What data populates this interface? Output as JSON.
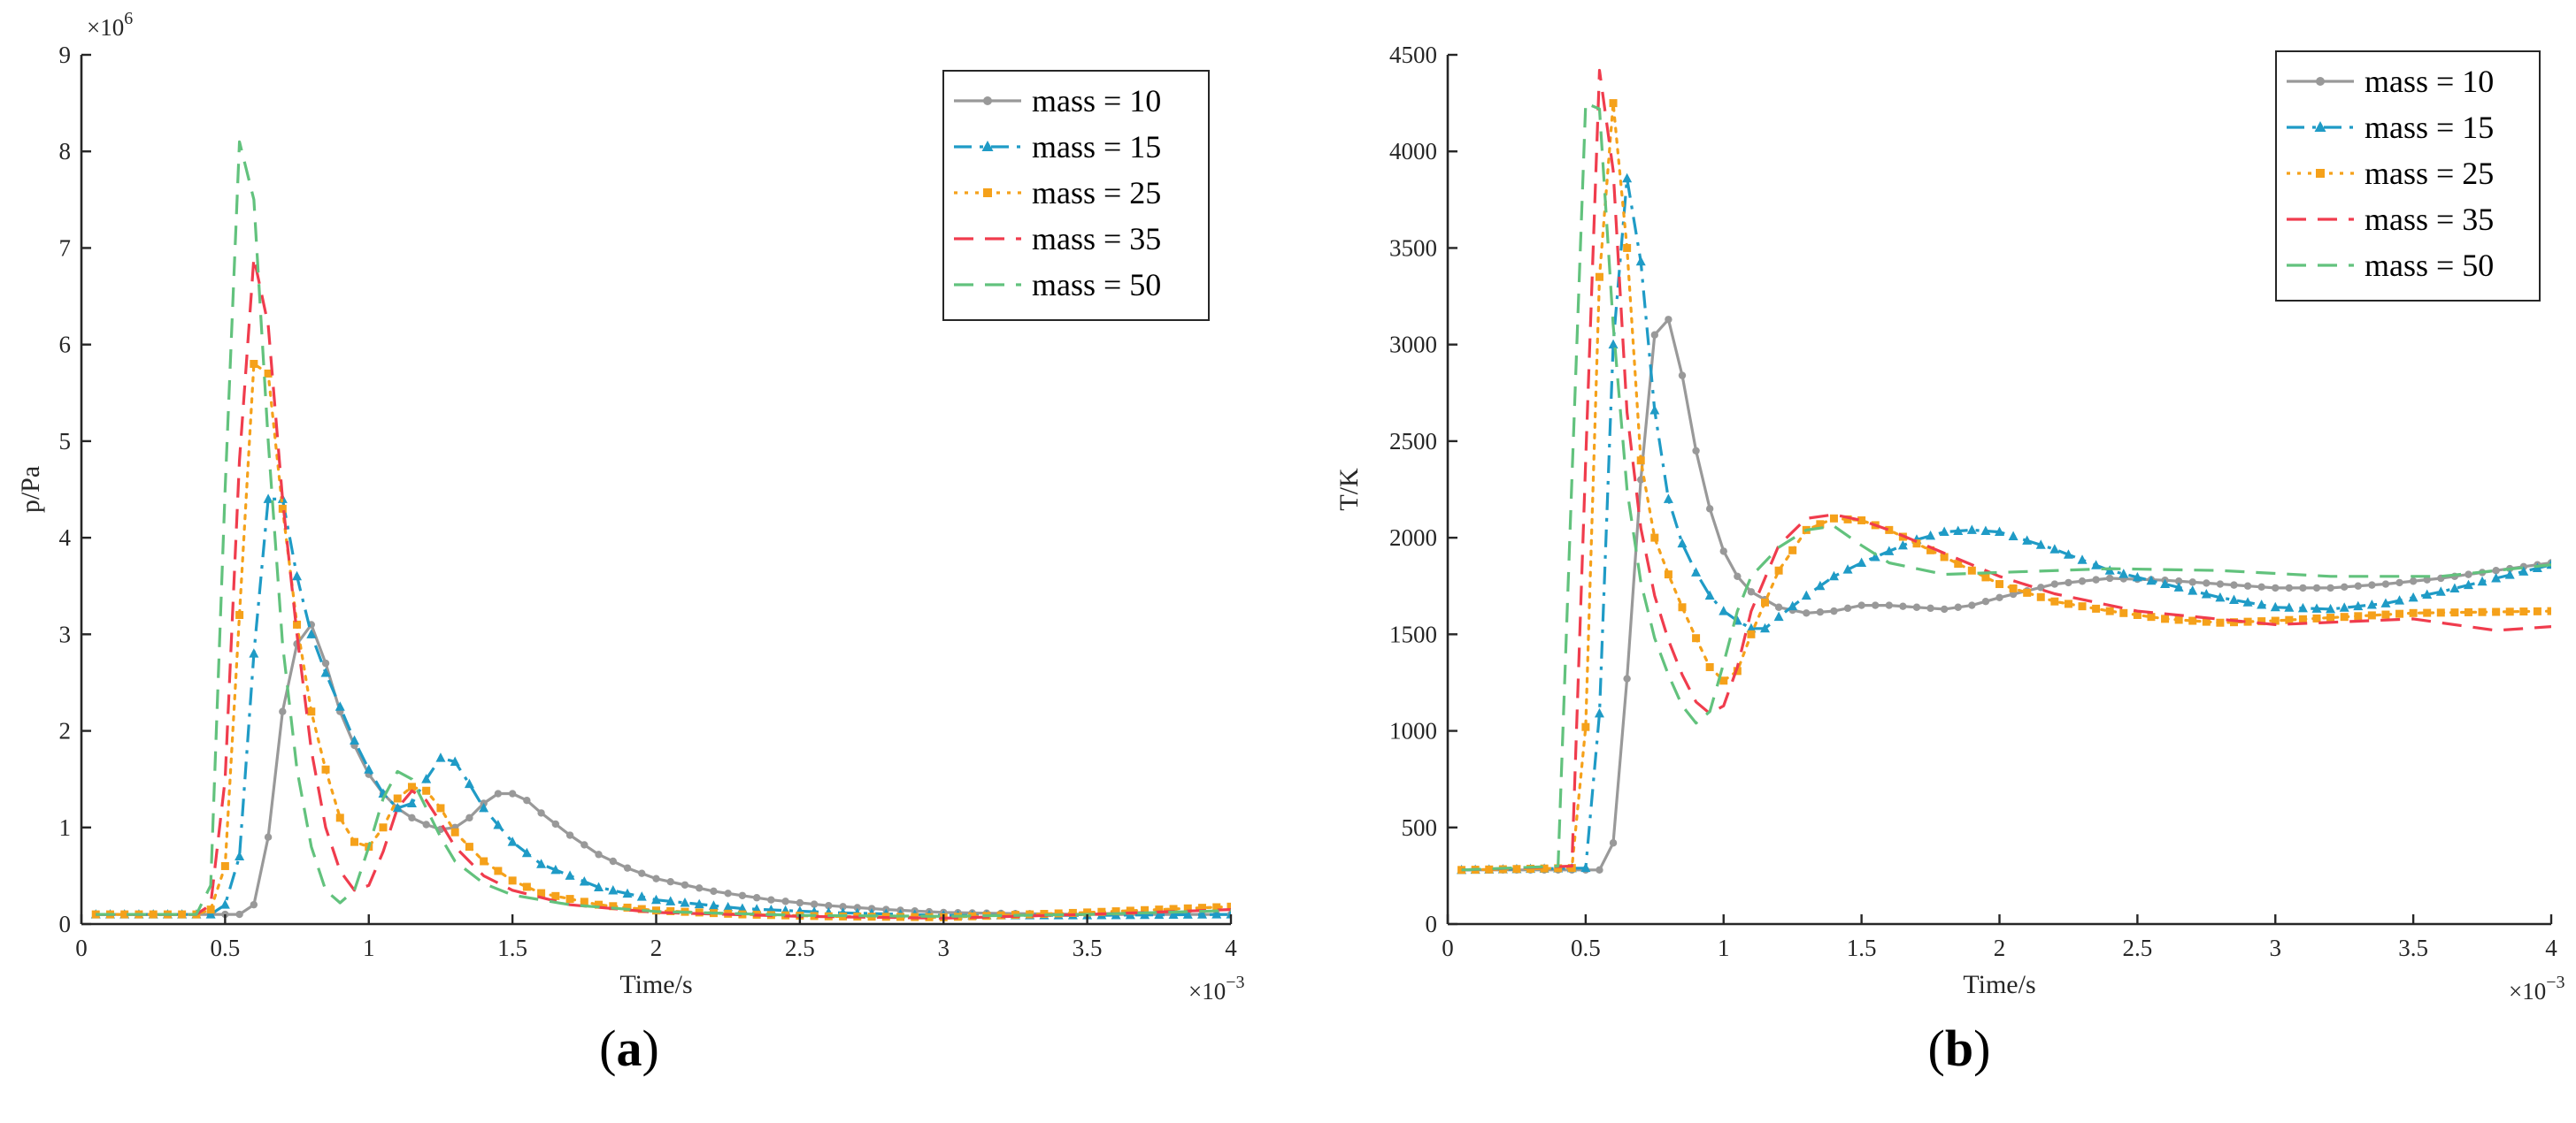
{
  "chart_data": [
    {
      "type": "line",
      "caption_open": "(",
      "caption_letter": "a",
      "caption_close": ")",
      "xlabel": "Time/s",
      "ylabel": "p/Pa",
      "xlim": [
        0,
        4
      ],
      "ylim": [
        0,
        9
      ],
      "x_ticks": [
        "0",
        "0.5",
        "1",
        "1.5",
        "2",
        "2.5",
        "3",
        "3.5",
        "4"
      ],
      "y_ticks": [
        "0",
        "1",
        "2",
        "3",
        "4",
        "5",
        "6",
        "7",
        "8",
        "9"
      ],
      "x_exponent": "×10",
      "x_exponent_power": "−3",
      "y_exponent": "×10",
      "y_exponent_power": "6",
      "legend_position": "top-right",
      "series": [
        {
          "name": "mass = 10",
          "color": "#999999",
          "style": "solid",
          "marker": "dot",
          "x": [
            0.05,
            0.5,
            0.55,
            0.6,
            0.65,
            0.7,
            0.75,
            0.8,
            0.85,
            0.9,
            0.95,
            1.0,
            1.05,
            1.1,
            1.15,
            1.2,
            1.25,
            1.3,
            1.35,
            1.4,
            1.45,
            1.5,
            1.55,
            1.6,
            1.7,
            1.8,
            1.9,
            2.0,
            2.2,
            2.4,
            2.6,
            2.8,
            3.0,
            3.2,
            3.5,
            4.0
          ],
          "y": [
            0.1,
            0.1,
            0.1,
            0.2,
            0.9,
            2.2,
            2.9,
            3.1,
            2.7,
            2.2,
            1.85,
            1.55,
            1.35,
            1.2,
            1.1,
            1.03,
            0.98,
            1.0,
            1.1,
            1.25,
            1.35,
            1.35,
            1.28,
            1.15,
            0.92,
            0.72,
            0.58,
            0.47,
            0.34,
            0.25,
            0.19,
            0.15,
            0.12,
            0.11,
            0.1,
            0.1
          ]
        },
        {
          "name": "mass = 15",
          "color": "#1f9bc6",
          "style": "dashdot",
          "marker": "triangle",
          "x": [
            0.05,
            0.45,
            0.5,
            0.55,
            0.6,
            0.65,
            0.7,
            0.75,
            0.8,
            0.85,
            0.9,
            0.95,
            1.0,
            1.05,
            1.1,
            1.15,
            1.2,
            1.25,
            1.3,
            1.35,
            1.4,
            1.5,
            1.6,
            1.8,
            2.0,
            2.3,
            2.6,
            3.0,
            3.5,
            4.0
          ],
          "y": [
            0.1,
            0.1,
            0.2,
            0.7,
            2.8,
            4.4,
            4.4,
            3.6,
            3.0,
            2.6,
            2.25,
            1.9,
            1.6,
            1.35,
            1.2,
            1.25,
            1.5,
            1.72,
            1.68,
            1.45,
            1.2,
            0.85,
            0.62,
            0.38,
            0.25,
            0.16,
            0.12,
            0.09,
            0.09,
            0.1
          ]
        },
        {
          "name": "mass = 25",
          "color": "#f5a11a",
          "style": "dotted",
          "marker": "square",
          "x": [
            0.05,
            0.4,
            0.45,
            0.5,
            0.55,
            0.6,
            0.65,
            0.7,
            0.75,
            0.8,
            0.85,
            0.9,
            0.95,
            1.0,
            1.05,
            1.1,
            1.15,
            1.2,
            1.25,
            1.3,
            1.4,
            1.5,
            1.6,
            1.8,
            2.0,
            2.3,
            2.6,
            3.0,
            3.5,
            4.0
          ],
          "y": [
            0.1,
            0.1,
            0.15,
            0.6,
            3.2,
            5.8,
            5.7,
            4.3,
            3.1,
            2.2,
            1.6,
            1.1,
            0.85,
            0.8,
            1.0,
            1.3,
            1.42,
            1.38,
            1.2,
            0.95,
            0.65,
            0.45,
            0.32,
            0.2,
            0.14,
            0.1,
            0.08,
            0.07,
            0.12,
            0.18
          ]
        },
        {
          "name": "mass = 35",
          "color": "#f03c4d",
          "style": "dashed",
          "marker": "none",
          "x": [
            0.05,
            0.4,
            0.45,
            0.5,
            0.55,
            0.6,
            0.65,
            0.7,
            0.75,
            0.8,
            0.85,
            0.9,
            0.95,
            1.0,
            1.05,
            1.1,
            1.15,
            1.2,
            1.25,
            1.3,
            1.4,
            1.5,
            1.7,
            2.0,
            2.5,
            3.0,
            3.5,
            4.0
          ],
          "y": [
            0.1,
            0.1,
            0.2,
            1.5,
            4.8,
            6.9,
            6.2,
            4.4,
            3.0,
            1.8,
            1.0,
            0.55,
            0.35,
            0.4,
            0.75,
            1.2,
            1.38,
            1.28,
            1.05,
            0.8,
            0.5,
            0.35,
            0.2,
            0.12,
            0.08,
            0.06,
            0.1,
            0.15
          ]
        },
        {
          "name": "mass = 50",
          "color": "#62c27d",
          "style": "dashed",
          "marker": "none",
          "x": [
            0.05,
            0.4,
            0.45,
            0.5,
            0.55,
            0.6,
            0.65,
            0.7,
            0.75,
            0.8,
            0.85,
            0.9,
            0.95,
            1.0,
            1.05,
            1.1,
            1.15,
            1.2,
            1.25,
            1.3,
            1.4,
            1.5,
            1.7,
            2.0,
            2.5,
            3.0,
            3.5,
            4.0
          ],
          "y": [
            0.1,
            0.1,
            0.4,
            4.5,
            8.1,
            7.5,
            5.0,
            2.9,
            1.6,
            0.8,
            0.35,
            0.22,
            0.35,
            0.8,
            1.3,
            1.58,
            1.5,
            1.2,
            0.9,
            0.65,
            0.42,
            0.3,
            0.2,
            0.13,
            0.09,
            0.08,
            0.1,
            0.14
          ]
        }
      ]
    },
    {
      "type": "line",
      "caption_open": "(",
      "caption_letter": "b",
      "caption_close": ")",
      "xlabel": "Time/s",
      "ylabel": "T/K",
      "xlim": [
        0,
        4
      ],
      "ylim": [
        0,
        4500
      ],
      "x_ticks": [
        "0",
        "0.5",
        "1",
        "1.5",
        "2",
        "2.5",
        "3",
        "3.5",
        "4"
      ],
      "y_ticks": [
        "0",
        "500",
        "1000",
        "1500",
        "2000",
        "2500",
        "3000",
        "3500",
        "4000",
        "4500"
      ],
      "x_exponent": "×10",
      "x_exponent_power": "−3",
      "legend_position": "top-right",
      "series": [
        {
          "name": "mass = 10",
          "color": "#999999",
          "style": "solid",
          "marker": "dot",
          "x": [
            0.05,
            0.55,
            0.6,
            0.65,
            0.7,
            0.75,
            0.8,
            0.85,
            0.9,
            0.95,
            1.0,
            1.05,
            1.1,
            1.2,
            1.3,
            1.4,
            1.5,
            1.6,
            1.7,
            1.8,
            1.9,
            2.0,
            2.2,
            2.4,
            2.6,
            2.8,
            3.0,
            3.2,
            3.4,
            3.6,
            3.8,
            4.0
          ],
          "y": [
            280,
            280,
            420,
            1270,
            2300,
            3050,
            3130,
            2840,
            2450,
            2150,
            1930,
            1800,
            1720,
            1640,
            1610,
            1620,
            1650,
            1650,
            1640,
            1630,
            1650,
            1690,
            1760,
            1790,
            1780,
            1760,
            1740,
            1740,
            1760,
            1790,
            1830,
            1870
          ]
        },
        {
          "name": "mass = 15",
          "color": "#1f9bc6",
          "style": "dashdot",
          "marker": "triangle",
          "x": [
            0.05,
            0.5,
            0.55,
            0.6,
            0.65,
            0.7,
            0.75,
            0.8,
            0.85,
            0.9,
            0.95,
            1.0,
            1.05,
            1.1,
            1.15,
            1.2,
            1.3,
            1.4,
            1.5,
            1.6,
            1.7,
            1.8,
            1.9,
            2.0,
            2.2,
            2.4,
            2.6,
            2.8,
            3.0,
            3.2,
            3.4,
            3.6,
            3.8,
            4.0
          ],
          "y": [
            280,
            290,
            1090,
            3000,
            3860,
            3430,
            2660,
            2200,
            1970,
            1820,
            1700,
            1620,
            1570,
            1530,
            1530,
            1590,
            1700,
            1800,
            1870,
            1930,
            1990,
            2030,
            2040,
            2030,
            1940,
            1830,
            1760,
            1690,
            1640,
            1630,
            1660,
            1720,
            1790,
            1860
          ]
        },
        {
          "name": "mass = 25",
          "color": "#f5a11a",
          "style": "dotted",
          "marker": "square",
          "x": [
            0.05,
            0.45,
            0.5,
            0.55,
            0.6,
            0.65,
            0.7,
            0.75,
            0.8,
            0.85,
            0.9,
            0.95,
            1.0,
            1.05,
            1.1,
            1.2,
            1.3,
            1.4,
            1.5,
            1.6,
            1.8,
            2.0,
            2.2,
            2.4,
            2.6,
            2.8,
            3.0,
            3.5,
            4.0
          ],
          "y": [
            280,
            290,
            1020,
            3350,
            4250,
            3500,
            2400,
            2000,
            1810,
            1640,
            1480,
            1330,
            1260,
            1310,
            1500,
            1830,
            2040,
            2100,
            2090,
            2040,
            1900,
            1760,
            1670,
            1620,
            1580,
            1560,
            1570,
            1610,
            1620
          ]
        },
        {
          "name": "mass = 35",
          "color": "#f03c4d",
          "style": "dashed",
          "marker": "none",
          "x": [
            0.05,
            0.45,
            0.5,
            0.55,
            0.6,
            0.65,
            0.7,
            0.75,
            0.8,
            0.85,
            0.9,
            0.95,
            1.0,
            1.05,
            1.1,
            1.2,
            1.3,
            1.4,
            1.5,
            1.6,
            1.8,
            2.0,
            2.2,
            2.5,
            3.0,
            3.5,
            3.8,
            4.0
          ],
          "y": [
            280,
            300,
            2400,
            4420,
            3900,
            2650,
            2050,
            1700,
            1470,
            1290,
            1150,
            1090,
            1130,
            1330,
            1620,
            1960,
            2100,
            2120,
            2090,
            2040,
            1920,
            1800,
            1710,
            1620,
            1550,
            1580,
            1520,
            1540
          ]
        },
        {
          "name": "mass = 50",
          "color": "#62c27d",
          "style": "dashed",
          "marker": "none",
          "x": [
            0.05,
            0.4,
            0.45,
            0.5,
            0.55,
            0.6,
            0.65,
            0.7,
            0.75,
            0.8,
            0.85,
            0.9,
            0.95,
            1.0,
            1.05,
            1.1,
            1.2,
            1.3,
            1.4,
            1.5,
            1.6,
            1.8,
            2.0,
            2.4,
            2.8,
            3.2,
            3.6,
            4.0
          ],
          "y": [
            280,
            300,
            2300,
            4250,
            4220,
            3100,
            2250,
            1770,
            1480,
            1290,
            1130,
            1040,
            1100,
            1350,
            1620,
            1800,
            1950,
            2040,
            2060,
            1960,
            1870,
            1810,
            1820,
            1840,
            1830,
            1800,
            1800,
            1860
          ]
        }
      ]
    }
  ]
}
